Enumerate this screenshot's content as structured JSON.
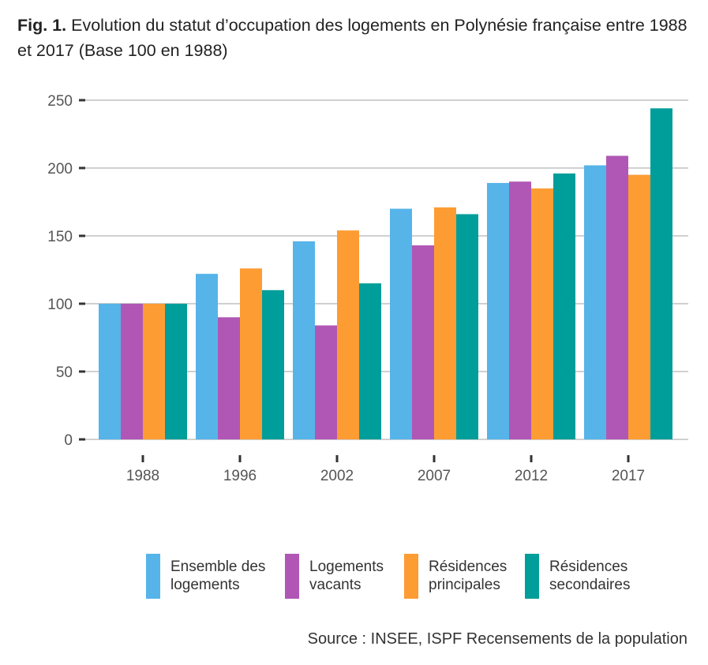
{
  "figure": {
    "label": "Fig. 1.",
    "title": "Evolution du statut d’occupation des logements en Polynésie française entre 1988 et 2017 (Base 100 en 1988)",
    "source": "Source : INSEE, ISPF Recensements de la population"
  },
  "chart_data": {
    "type": "bar",
    "title": "Evolution du statut d’occupation des logements en Polynésie française entre 1988 et 2017 (Base 100 en 1988)",
    "categories": [
      "1988",
      "1996",
      "2002",
      "2007",
      "2012",
      "2017"
    ],
    "yticks": [
      "0",
      "50",
      "100",
      "150",
      "200",
      "250"
    ],
    "ylim": [
      0,
      250
    ],
    "grid": true,
    "legend_position": "bottom",
    "series": [
      {
        "name": "Ensemble des logements",
        "color": "#56b4e9",
        "values": [
          100,
          122,
          146,
          170,
          189,
          202
        ]
      },
      {
        "name": "Logements vacants",
        "color": "#b057b5",
        "values": [
          100,
          90,
          84,
          143,
          190,
          209
        ]
      },
      {
        "name": "Résidences principales",
        "color": "#fd9c33",
        "values": [
          100,
          126,
          154,
          171,
          185,
          195
        ]
      },
      {
        "name": "Résidences secondaires",
        "color": "#009e9a",
        "values": [
          100,
          110,
          115,
          166,
          196,
          244
        ]
      }
    ]
  },
  "legend": [
    {
      "label": "Ensemble des\nlogements",
      "color": "#56b4e9"
    },
    {
      "label": "Logements\nvacants",
      "color": "#b057b5"
    },
    {
      "label": "Résidences\nprincipales",
      "color": "#fd9c33"
    },
    {
      "label": "Résidences\nsecondaires",
      "color": "#009e9a"
    }
  ]
}
